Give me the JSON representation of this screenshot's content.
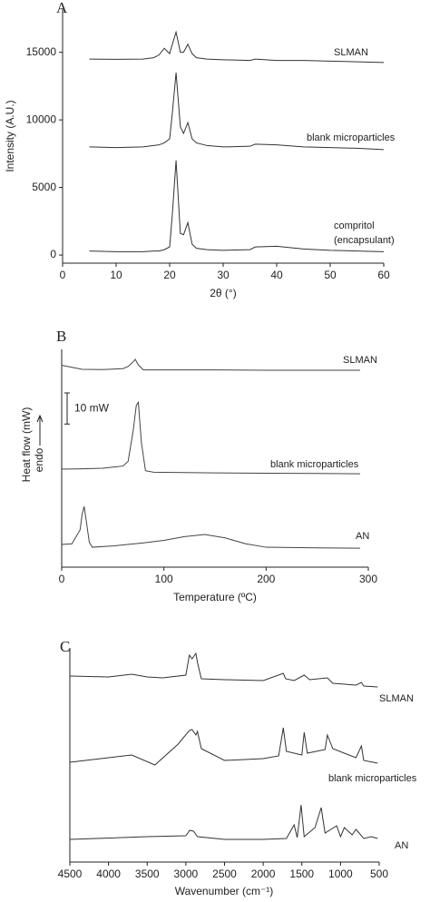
{
  "chart_data": [
    {
      "type": "line",
      "panel_label": "A",
      "x_label": "2θ (°)",
      "y_label": "Intensity (A.U.)",
      "xlim": [
        0,
        60
      ],
      "xticks": [
        0,
        10,
        20,
        30,
        40,
        50,
        60
      ],
      "ylim": [
        -600,
        18200
      ],
      "yticks": [
        0,
        5000,
        10000,
        15000
      ],
      "series": [
        {
          "name": "SLMAN",
          "color": "#333333",
          "x": [
            5,
            10,
            15,
            17,
            18,
            19,
            20,
            20.5,
            21.2,
            22,
            22.6,
            23.4,
            24.2,
            25,
            27,
            30,
            35,
            36,
            40,
            45,
            50,
            55,
            60
          ],
          "values": [
            14500,
            14480,
            14500,
            14600,
            14800,
            15300,
            14900,
            15600,
            16500,
            15000,
            15000,
            15600,
            14900,
            14600,
            14500,
            14450,
            14400,
            14500,
            14400,
            14400,
            14350,
            14300,
            14250
          ]
        },
        {
          "name": "blank microparticles",
          "color": "#333333",
          "x": [
            5,
            10,
            15,
            17,
            18,
            19,
            20,
            20.5,
            21.2,
            22,
            22.6,
            23.4,
            24.2,
            25,
            27,
            30,
            35,
            36,
            40,
            45,
            50,
            55,
            60
          ],
          "values": [
            8000,
            7950,
            8000,
            8100,
            8150,
            8300,
            8600,
            10500,
            13500,
            9500,
            9000,
            9800,
            8600,
            8300,
            8100,
            8000,
            8050,
            8200,
            8150,
            8000,
            7950,
            7900,
            7800
          ]
        },
        {
          "name": "compritol\n(encapsulant)",
          "color": "#333333",
          "x": [
            5,
            10,
            15,
            17,
            18,
            19,
            20,
            20.5,
            21.2,
            22,
            22.6,
            23.4,
            24.2,
            25,
            27,
            30,
            35,
            36,
            40,
            45,
            50,
            55,
            60
          ],
          "values": [
            300,
            250,
            250,
            300,
            300,
            400,
            600,
            3000,
            7000,
            1600,
            1500,
            2400,
            800,
            500,
            400,
            350,
            400,
            600,
            650,
            450,
            350,
            300,
            250
          ]
        }
      ]
    },
    {
      "type": "line",
      "panel_label": "B",
      "x_label": "Temperature (ºC)",
      "y_label": "Heat flow (mW)",
      "annotation": "endo",
      "scale_bar": {
        "value": 10,
        "label": "10 mW"
      },
      "xlim": [
        0,
        300
      ],
      "xticks": [
        0,
        100,
        200,
        300
      ],
      "ylim": [
        0,
        70
      ],
      "series": [
        {
          "name": "SLMAN",
          "color": "#444444",
          "x": [
            0,
            20,
            40,
            60,
            65,
            70,
            72,
            75,
            80,
            100,
            150,
            200,
            250,
            292
          ],
          "values": [
            64.9,
            63.6,
            63.5,
            63.8,
            64.5,
            66,
            66.8,
            65,
            63.4,
            63.4,
            63.4,
            63.3,
            63.3,
            63.3
          ]
        },
        {
          "name": "blank microparticles",
          "color": "#444444",
          "x": [
            0,
            20,
            40,
            60,
            65,
            70,
            73,
            75,
            78,
            82,
            90,
            150,
            200,
            250,
            292
          ],
          "values": [
            31.5,
            31.6,
            31.8,
            32.5,
            34,
            44,
            52,
            53,
            40,
            31,
            30.5,
            30.3,
            30.2,
            30.1,
            30
          ]
        },
        {
          "name": "AN",
          "color": "#444444",
          "x": [
            0,
            10,
            18,
            20,
            22,
            24,
            27,
            30,
            50,
            80,
            100,
            120,
            140,
            160,
            180,
            200,
            250,
            292
          ],
          "values": [
            7.3,
            7.5,
            12,
            17,
            19.5,
            15,
            8,
            6.4,
            6.8,
            7.8,
            8.6,
            9.8,
            10.5,
            9.4,
            7.5,
            6.4,
            6.2,
            6.1
          ]
        }
      ]
    },
    {
      "type": "line",
      "panel_label": "C",
      "x_label": "Wavenumber (cm⁻¹)",
      "xlim": [
        4500,
        500
      ],
      "xticks": [
        4500,
        4000,
        3500,
        3000,
        2500,
        2000,
        1500,
        1000,
        500
      ],
      "ylim": [
        0,
        118
      ],
      "series": [
        {
          "name": "SLMAN",
          "color": "#333333",
          "x": [
            4500,
            4000,
            3700,
            3500,
            3300,
            3000,
            2955,
            2920,
            2870,
            2850,
            2800,
            2500,
            2000,
            1740,
            1710,
            1600,
            1470,
            1400,
            1170,
            1100,
            800,
            730,
            700,
            520
          ],
          "values": [
            102.5,
            102,
            103.5,
            102,
            101.5,
            103,
            114,
            112,
            115,
            110,
            101,
            100.5,
            100,
            104,
            101,
            100,
            103,
            100.5,
            101.5,
            98.5,
            97.5,
            99,
            97,
            96.5
          ]
        },
        {
          "name": "blank microparticles",
          "color": "#333333",
          "x": [
            4500,
            3700,
            3400,
            3100,
            2955,
            2920,
            2870,
            2850,
            2800,
            2500,
            2000,
            1800,
            1740,
            1700,
            1500,
            1470,
            1430,
            1200,
            1170,
            1100,
            800,
            730,
            700,
            520
          ],
          "values": [
            55,
            59,
            53.5,
            65,
            72.5,
            73,
            70,
            72,
            62.5,
            56,
            57,
            58.5,
            74,
            61,
            59,
            71.5,
            60,
            62,
            70,
            62.5,
            57.5,
            64,
            56,
            54.5
          ]
        },
        {
          "name": "AN",
          "color": "#333333",
          "x": [
            4500,
            3500,
            3000,
            2950,
            2900,
            2850,
            2500,
            2000,
            1700,
            1600,
            1560,
            1510,
            1470,
            1330,
            1250,
            1200,
            1050,
            1000,
            950,
            850,
            800,
            700,
            600,
            520
          ],
          "values": [
            12.5,
            14,
            14.5,
            17.5,
            17,
            14,
            12.5,
            12.5,
            13,
            20.5,
            13.5,
            31.5,
            14,
            19,
            30,
            16,
            20,
            14,
            19,
            15,
            18,
            13,
            14,
            13
          ]
        }
      ]
    }
  ]
}
